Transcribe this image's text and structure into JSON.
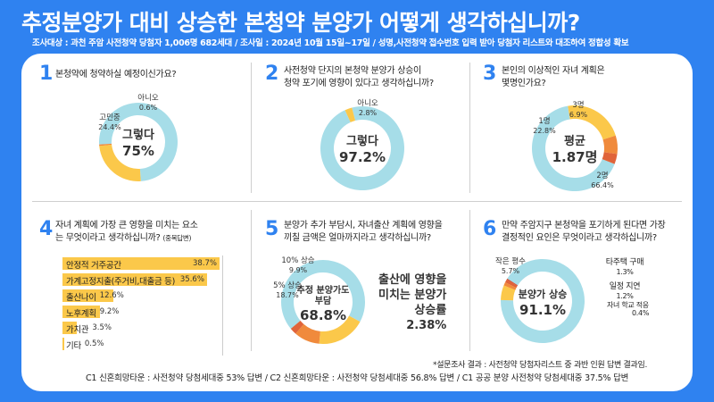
{
  "header": {
    "title": "추정분양가 대비 상승한 본청약 분양가 어떻게 생각하십니까?",
    "survey_info": "조사대상 : 과천 주암 사전청약 당첨자 1,006명 682세대   / 조사일 : 2024년 10월 15일~17일 / 성명,사전청약 접수번호 입력 받아 당첨자 리스트와 대조하여 정합성 확보"
  },
  "chart_data": [
    {
      "type": "pie",
      "number": "1",
      "question": [
        "본청약에 청약하실 예정이신가요?"
      ],
      "center_label": [
        "그렇다",
        "75%"
      ],
      "slices": [
        {
          "label": "그렇다",
          "value": 75,
          "color": "#a6dde8"
        },
        {
          "label": "고민중",
          "value": 24.4,
          "color": "#fbc84a",
          "text": [
            "고민중",
            "24.4%"
          ]
        },
        {
          "label": "아니오",
          "value": 0.6,
          "color": "#f08a3c",
          "text": [
            "아니오",
            "0.6%"
          ]
        }
      ]
    },
    {
      "type": "pie",
      "number": "2",
      "question": [
        "사전청약 단지의 본청약 분양가 상승이",
        "청약 포기에 영향이 있다고 생각하십니까?"
      ],
      "center_label": [
        "그렇다",
        "97.2%"
      ],
      "slices": [
        {
          "label": "그렇다",
          "value": 97.2,
          "color": "#a6dde8"
        },
        {
          "label": "아니오",
          "value": 2.8,
          "color": "#fbc84a",
          "text": [
            "아니오",
            "2.8%"
          ]
        }
      ]
    },
    {
      "type": "pie",
      "number": "3",
      "question": [
        "본인의 이상적인 자녀 계획은",
        "몇명인가요?"
      ],
      "center_label": [
        "평균",
        "1.87명"
      ],
      "slices": [
        {
          "label": "2명",
          "value": 66.4,
          "color": "#a6dde8",
          "text": [
            "2명",
            "66.4%"
          ]
        },
        {
          "label": "1명",
          "value": 22.8,
          "color": "#fbc84a",
          "text": [
            "1명",
            "22.8%"
          ]
        },
        {
          "label": "3명",
          "value": 6.9,
          "color": "#f08a3c",
          "text": [
            "3명",
            "6.9%"
          ]
        },
        {
          "label": "기타",
          "value": 3.9,
          "color": "#e0643a"
        }
      ]
    },
    {
      "type": "bar",
      "number": "4",
      "question": [
        "자녀 계획에 가장 큰 영향을 미치는 요소",
        "는 무엇이라고 생각하십니까?"
      ],
      "question_note": "(중복답변)",
      "categories": [
        "안정적 거주공간",
        "가계고정지출(주거비,대출금 등)",
        "출산나이",
        "노후계획",
        "가치관",
        "기타"
      ],
      "values": [
        38.7,
        35.6,
        12.6,
        9.2,
        3.5,
        0.5
      ],
      "value_labels": [
        "38.7%",
        "35.6%",
        "12.6%",
        "9.2%",
        "3.5%",
        "0.5%"
      ],
      "xlim": [
        0,
        38.7
      ]
    },
    {
      "type": "pie",
      "number": "5",
      "question": [
        "분양가 추가 부담시, 자녀출산 계획에 영향을",
        "끼칠 금액은 얼마까지라고 생각하십니까?"
      ],
      "center_label": [
        "추정 분양가도",
        "부담",
        "68.8%"
      ],
      "slices": [
        {
          "label": "추정 분양가도 부담",
          "value": 68.8,
          "color": "#a6dde8"
        },
        {
          "label": "5% 상승",
          "value": 18.7,
          "color": "#fbc84a",
          "text": [
            "5% 상승",
            "18.7%"
          ]
        },
        {
          "label": "10% 상승",
          "value": 9.9,
          "color": "#f08a3c",
          "text": [
            "10% 상승",
            "9.9%"
          ]
        },
        {
          "label": "기타",
          "value": 2.6,
          "color": "#e0643a"
        }
      ],
      "side_text": [
        "출산에 영향을",
        "미치는 분양가",
        "상승률",
        "2.38%"
      ]
    },
    {
      "type": "pie",
      "number": "6",
      "question": [
        "만약 주암지구 본청약을 포기하게 된다면 가장",
        "결정적인 요인은 무엇이라고 생각하십니까?"
      ],
      "center_label": [
        "분양가 상승",
        "91.1%"
      ],
      "slices": [
        {
          "label": "분양가 상승",
          "value": 91.1,
          "color": "#a6dde8"
        },
        {
          "label": "작은 평수",
          "value": 5.7,
          "color": "#fbc84a",
          "text": [
            "작은 평수",
            "5.7%"
          ]
        },
        {
          "label": "타주택 구매",
          "value": 1.3,
          "color": "#f08a3c"
        },
        {
          "label": "일정 지연",
          "value": 1.2,
          "color": "#e0643a"
        },
        {
          "label": "자녀 학교 적응",
          "value": 0.4,
          "color": "#d04a30"
        }
      ],
      "legend_text": [
        {
          "label": "타주택 구매",
          "value": "1.3%"
        },
        {
          "label": "일정 지연",
          "value": "1.2%"
        },
        {
          "label": "자녀 학교 적응",
          "value": "0.4%"
        }
      ]
    }
  ],
  "footer": {
    "note": "*설문조사 결과 : 사전청약 당첨자리스트 중 과반 인원 답변 결과임.",
    "line": "C1 신혼희망타운 : 사전청약 당첨세대중 53% 답변  / C2 신혼희망타운 : 사전청약 당첨세대중 56.8% 답변 / C1 공공 분양 사전청약 당첨세대중 37.5% 답변"
  }
}
